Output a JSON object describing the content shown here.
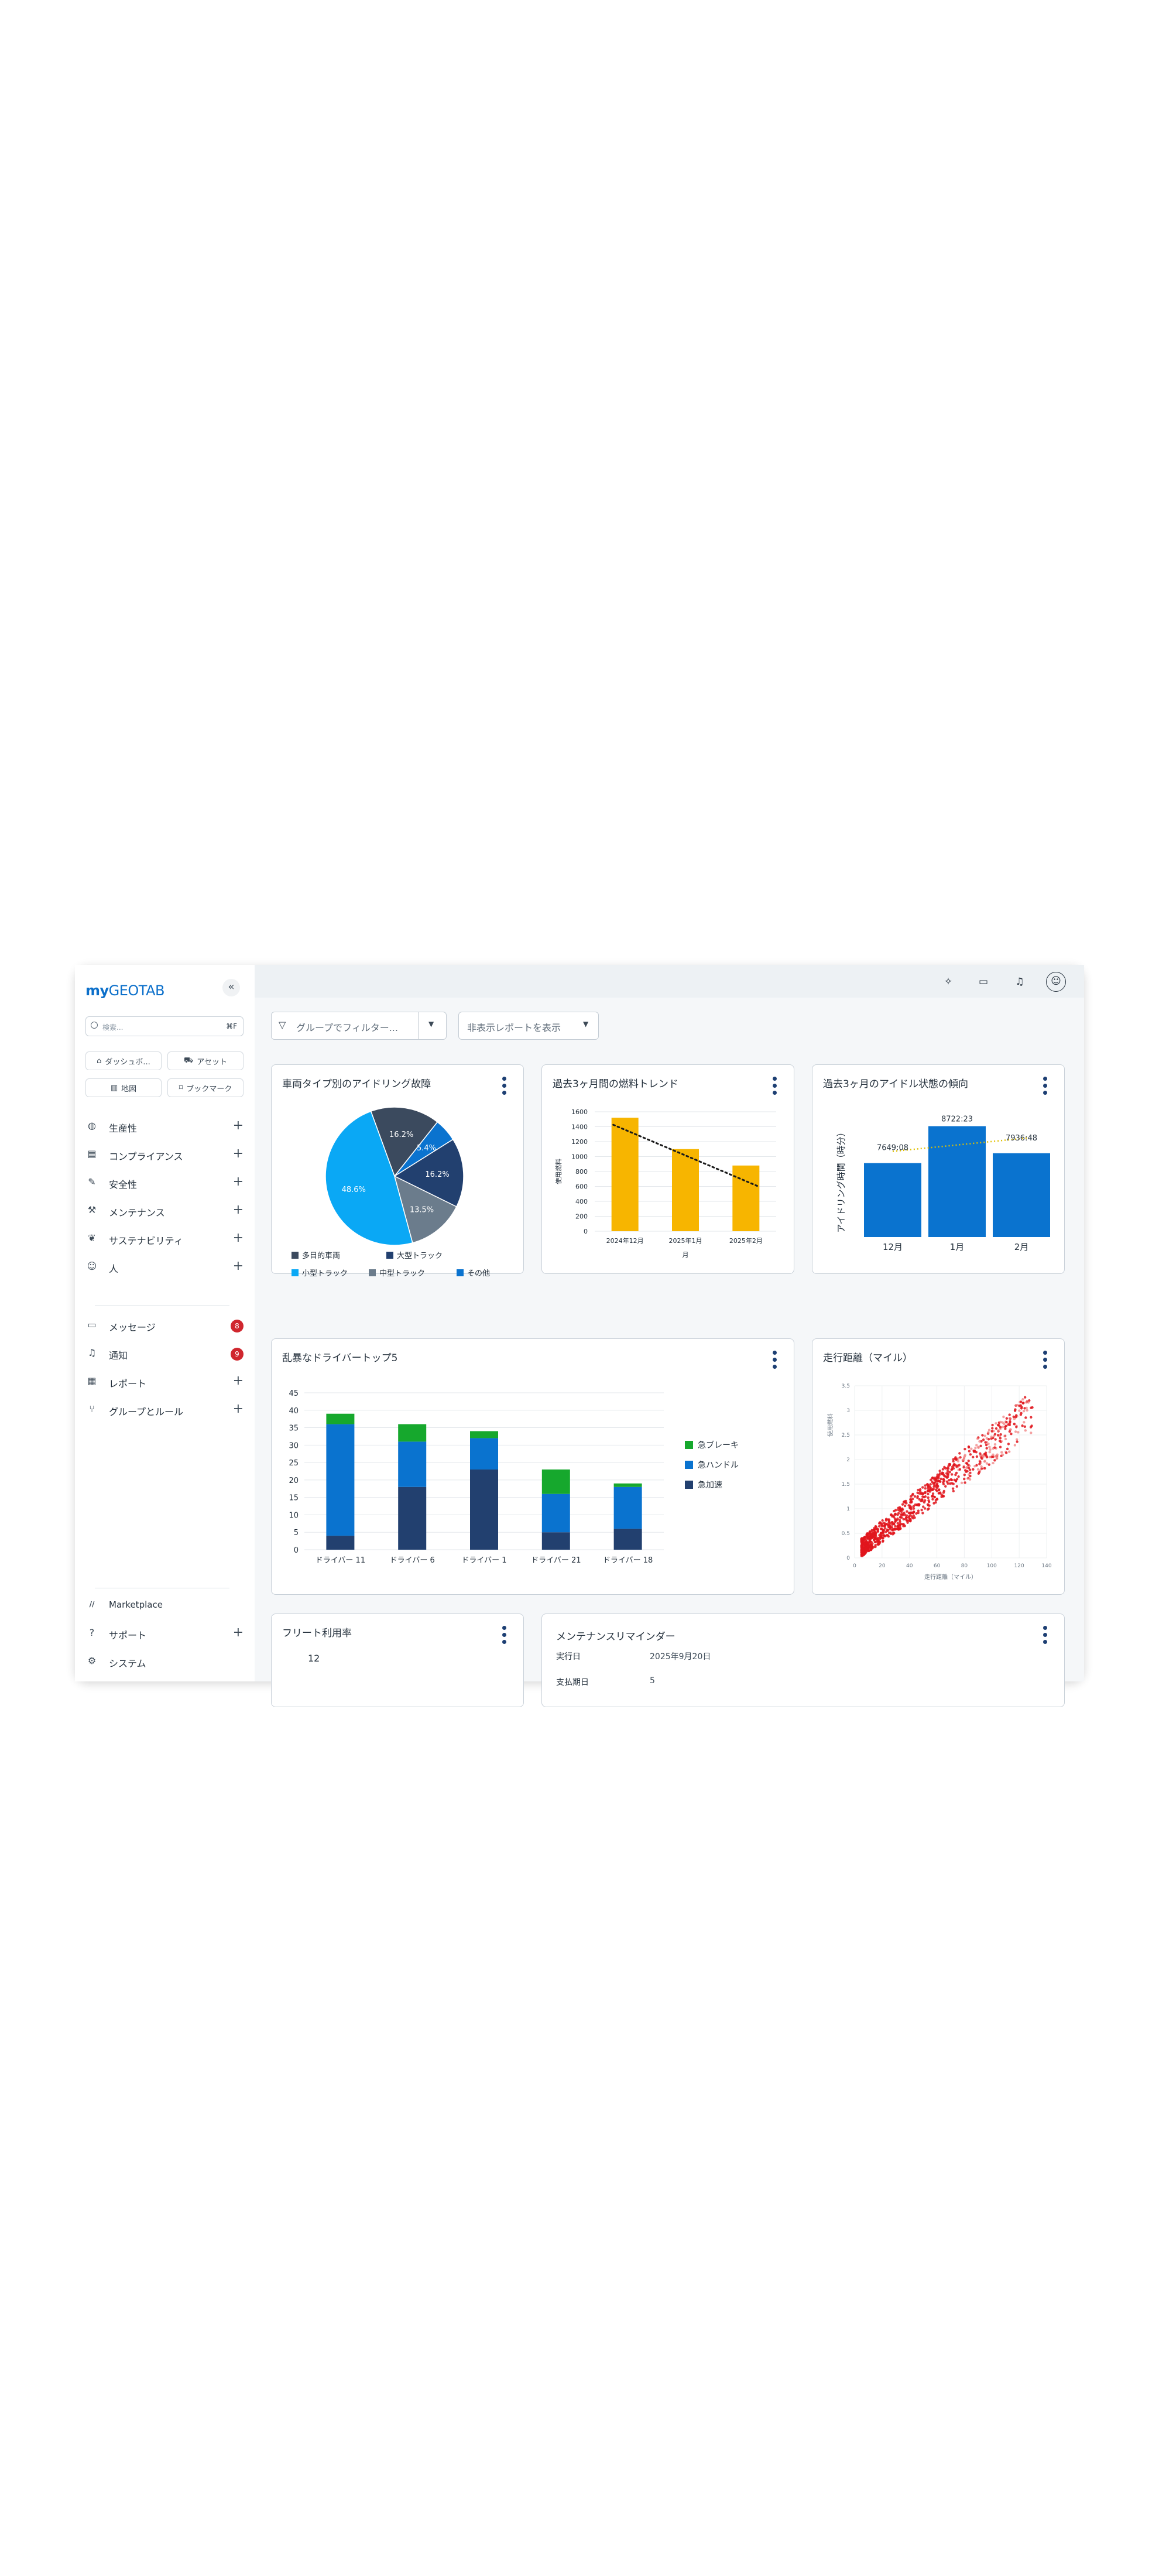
{
  "brand": {
    "my": "my",
    "geotab": "GEOTAB"
  },
  "sidebar": {
    "collapse_glyph": "«",
    "search": {
      "placeholder": "検索...",
      "shortcut": "⌘F"
    },
    "quick_links": [
      {
        "label": "ダッシュボ...",
        "icon": "home-icon"
      },
      {
        "label": "アセット",
        "icon": "truck-icon"
      },
      {
        "label": "地図",
        "icon": "map-icon"
      },
      {
        "label": "ブックマーク",
        "icon": "bookmark-icon"
      }
    ],
    "nav": [
      {
        "label": "生産性",
        "icon": "globe-icon"
      },
      {
        "label": "コンプライアンス",
        "icon": "clipboard-icon"
      },
      {
        "label": "安全性",
        "icon": "pencil-icon"
      },
      {
        "label": "メンテナンス",
        "icon": "wrench-icon"
      },
      {
        "label": "サステナビリティ",
        "icon": "leaf-icon"
      },
      {
        "label": "人",
        "icon": "people-icon"
      }
    ],
    "nav2": [
      {
        "label": "メッセージ",
        "icon": "chat-icon",
        "badge": "8"
      },
      {
        "label": "通知",
        "icon": "bell-icon",
        "badge": "9"
      },
      {
        "label": "レポート",
        "icon": "report-icon"
      },
      {
        "label": "グループとルール",
        "icon": "branch-icon"
      }
    ],
    "bottom": [
      {
        "label": "Marketplace",
        "icon": "marketplace-icon"
      },
      {
        "label": "サポート",
        "icon": "help-icon"
      },
      {
        "label": "システム",
        "icon": "gear-icon"
      }
    ]
  },
  "filters": {
    "group_filter": "グループでフィルター...",
    "hidden_reports": "非表示レポートを表示"
  },
  "cards": {
    "idling": {
      "title": "車両タイプ別のアイドリング故障"
    },
    "fuel": {
      "title": "過去3ヶ月間の燃料トレンド"
    },
    "idle_trend": {
      "title": "過去3ヶ月のアイドル状態の傾向"
    },
    "drivers": {
      "title": "乱暴なドライバートップ5"
    },
    "mileage": {
      "title": "走行距離（マイル）"
    },
    "fleet": {
      "title": "フリート利用率",
      "value": "12"
    },
    "maintenance": {
      "title": "メンテナンスリマインダー",
      "rows": [
        {
          "label": "実行日",
          "value": "2025年9月20日"
        },
        {
          "label": "支払期日",
          "value": "5"
        }
      ]
    }
  },
  "colors": {
    "brand_blue": "#0b6fca",
    "dark_slate": "#3b4a5e",
    "navy": "#22406f",
    "light_blue": "#0aa8f5",
    "grey_slate": "#6b7c8c",
    "blue": "#0a73cf",
    "amber": "#f7b500",
    "green": "#16a82d",
    "red_badge": "#d0262e",
    "scatter_red": "#e0151c"
  },
  "chart_data": [
    {
      "type": "pie",
      "slices": [
        {
          "name": "多目的車両",
          "value": 16.2,
          "color": "#3b4a5e",
          "label": "16.2%"
        },
        {
          "name": "その他",
          "value": 5.4,
          "color": "#0a73cf",
          "label": "5.4%"
        },
        {
          "name": "大型トラック",
          "value": 16.2,
          "color": "#22406f",
          "label": "16.2%"
        },
        {
          "name": "中型トラック",
          "value": 13.5,
          "color": "#6b7c8c",
          "label": "13.5%"
        },
        {
          "name": "小型トラック",
          "value": 48.6,
          "color": "#0aa8f5",
          "label": "48.6%"
        }
      ],
      "legend": [
        "多目的車両",
        "大型トラック",
        "小型トラック",
        "中型トラック",
        "その他"
      ]
    },
    {
      "type": "bar",
      "categories": [
        "2024年12月",
        "2025年1月",
        "2025年2月"
      ],
      "values": [
        1520,
        1100,
        880
      ],
      "xlabel": "月",
      "ylabel": "使用燃料",
      "ylim": [
        0,
        1600
      ],
      "yticks": [
        0,
        200,
        400,
        600,
        800,
        1000,
        1200,
        1400,
        1600
      ],
      "trendline": true,
      "grid": true
    },
    {
      "type": "bar",
      "categories": [
        "12月",
        "1月",
        "2月"
      ],
      "values": [
        7649.08,
        8722.23,
        7936.48
      ],
      "data_labels": [
        "7649:08",
        "8722:23",
        "7936:48"
      ],
      "ylabel": "アイドリング時間（時分）",
      "trendline": true
    },
    {
      "type": "bar",
      "stacked": true,
      "categories": [
        "ドライバー 11",
        "ドライバー 6",
        "ドライバー 1",
        "ドライバー 21",
        "ドライバー 18"
      ],
      "series": [
        {
          "name": "急加速",
          "values": [
            4,
            18,
            23,
            5,
            6
          ],
          "color": "#22406f"
        },
        {
          "name": "急ハンドル",
          "values": [
            32,
            13,
            9,
            11,
            12
          ],
          "color": "#0a73cf"
        },
        {
          "name": "急ブレーキ",
          "values": [
            3,
            5,
            2,
            7,
            1
          ],
          "color": "#16a82d"
        }
      ],
      "legend_order": [
        "急ブレーキ",
        "急ハンドル",
        "急加速"
      ],
      "ylim": [
        0,
        45
      ],
      "yticks": [
        0,
        5,
        10,
        15,
        20,
        25,
        30,
        35,
        40,
        45
      ],
      "legend_position": "right",
      "grid": true
    },
    {
      "type": "scatter",
      "xlabel": "走行距離（マイル）",
      "ylabel": "使用燃料",
      "xlim": [
        0,
        140
      ],
      "ylim": [
        0,
        3.5
      ],
      "xticks": [
        0,
        20,
        40,
        60,
        80,
        100,
        120,
        140
      ],
      "yticks": [
        0,
        0.5,
        1,
        1.5,
        2,
        2.5,
        3,
        3.5
      ],
      "points_description": "dense positive linear cluster, roughly y ≈ 0.022·x + 0.1, x from 5 to 130",
      "grid": true
    }
  ]
}
